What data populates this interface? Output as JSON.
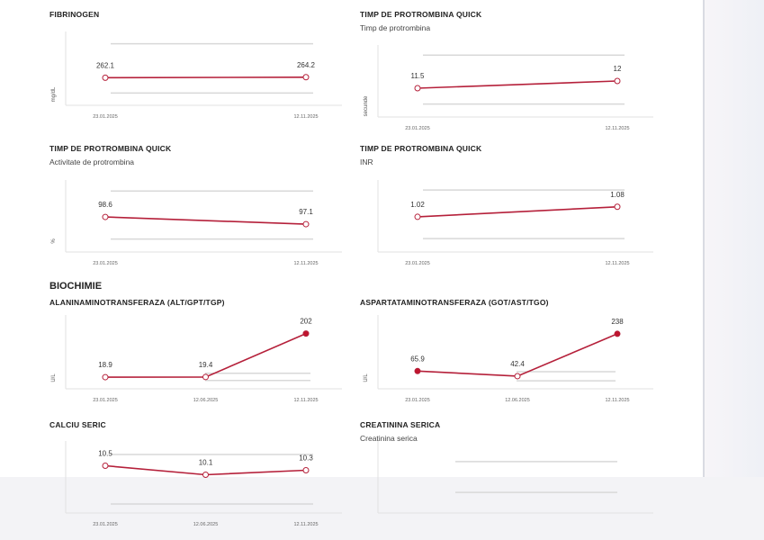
{
  "colors": {
    "line": "#b5203a",
    "point_abnormal": "#c0142e",
    "point_normal": "#ffffff",
    "reference_line": "#d8d8d8",
    "axis": "#e2e2e2"
  },
  "section_biochimie": "BIOCHIMIE",
  "chart_data": [
    {
      "type": "line",
      "title": "FIBRINOGEN",
      "subtitle": "",
      "ylabel": "mg/dL",
      "x": [
        "23.01.2025",
        "12.11.2025"
      ],
      "values": [
        262.1,
        264.2
      ],
      "value_labels": [
        "262.1",
        "264.2"
      ],
      "abnormal": [
        false,
        false
      ],
      "reference": [
        200,
        400
      ],
      "ylim": [
        150,
        450
      ]
    },
    {
      "type": "line",
      "title": "TIMP DE PROTROMBINA QUICK",
      "subtitle": "Timp de protrombina",
      "ylabel": "secunde",
      "x": [
        "23.01.2025",
        "12.11.2025"
      ],
      "values": [
        11.5,
        12
      ],
      "value_labels": [
        "11.5",
        "12"
      ],
      "abnormal": [
        false,
        false
      ],
      "reference": [
        10.4,
        13.8
      ],
      "ylim": [
        9.5,
        14.5
      ]
    },
    {
      "type": "line",
      "title": "TIMP DE PROTROMBINA QUICK",
      "subtitle": "Activitate de protrombina",
      "ylabel": "%",
      "x": [
        "23.01.2025",
        "12.11.2025"
      ],
      "values": [
        98.6,
        97.1
      ],
      "value_labels": [
        "98.6",
        "97.1"
      ],
      "abnormal": [
        false,
        false
      ],
      "reference": [
        94,
        104
      ],
      "ylim": [
        91.3,
        106.3
      ]
    },
    {
      "type": "line",
      "title": "TIMP DE PROTROMBINA QUICK",
      "subtitle": "INR",
      "ylabel": "",
      "x": [
        "23.01.2025",
        "12.11.2025"
      ],
      "values": [
        1.02,
        1.08
      ],
      "value_labels": [
        "1.02",
        "1.08"
      ],
      "abnormal": [
        false,
        false
      ],
      "reference": [
        0.89,
        1.18
      ],
      "ylim": [
        0.81,
        1.24
      ]
    },
    {
      "type": "line",
      "title": "ALANINAMINOTRANSFERAZA (ALT/GPT/TGP)",
      "subtitle": "",
      "ylabel": "U/L",
      "x": [
        "23.01.2025",
        "12.06.2025",
        "12.11.2025"
      ],
      "values": [
        18.9,
        19.4,
        202
      ],
      "value_labels": [
        "18.9",
        "19.4",
        "202"
      ],
      "abnormal": [
        false,
        false,
        true
      ],
      "reference": [
        5,
        35
      ],
      "ylim": [
        -30,
        280
      ]
    },
    {
      "type": "line",
      "title": "ASPARTATAMINOTRANSFERAZA (GOT/AST/TGO)",
      "subtitle": "",
      "ylabel": "U/L",
      "x": [
        "23.01.2025",
        "12.06.2025",
        "12.11.2025"
      ],
      "values": [
        65.9,
        42.4,
        238
      ],
      "value_labels": [
        "65.9",
        "42.4",
        "238"
      ],
      "abnormal": [
        true,
        false,
        true
      ],
      "reference": [
        21,
        63
      ],
      "ylim": [
        -16,
        325
      ]
    },
    {
      "type": "line",
      "title": "CALCIU SERIC",
      "subtitle": "",
      "ylabel": "",
      "x": [
        "23.01.2025",
        "12.06.2025",
        "12.11.2025"
      ],
      "values": [
        10.5,
        10.1,
        10.3
      ],
      "value_labels": [
        "10.5",
        "10.1",
        "10.3"
      ],
      "abnormal": [
        false,
        false,
        false
      ],
      "reference": [
        8.8,
        11
      ],
      "ylim": [
        8.4,
        11.6
      ]
    },
    {
      "type": "line",
      "title": "CREATININA SERICA",
      "subtitle": "Creatinina serica",
      "ylabel": "",
      "x": [],
      "values": [],
      "value_labels": [],
      "abnormal": [],
      "reference": [
        0.6,
        1.2
      ],
      "ylim": [
        0.2,
        1.6
      ]
    }
  ]
}
